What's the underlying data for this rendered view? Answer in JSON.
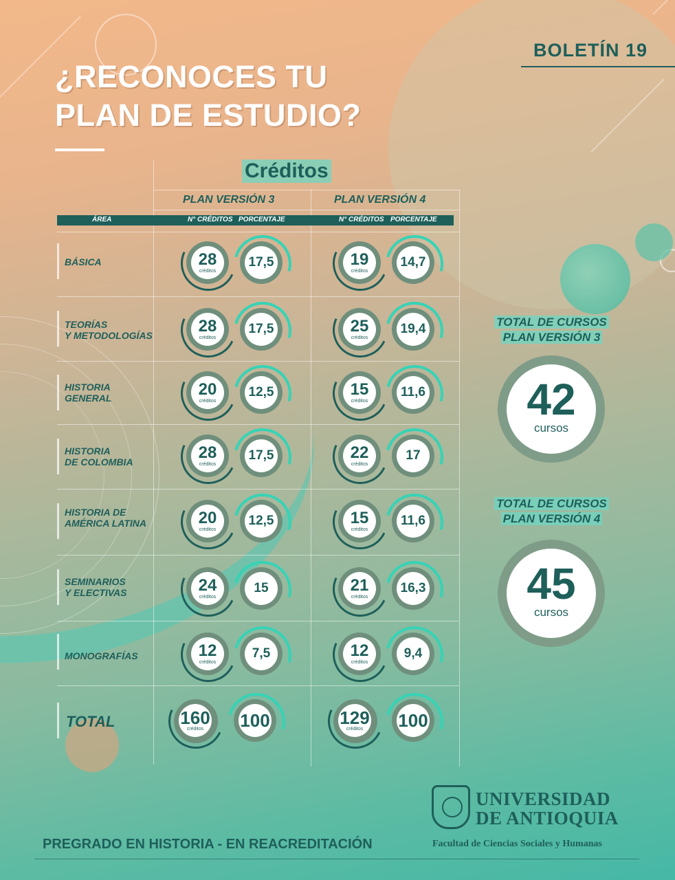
{
  "header": {
    "boletin": "BOLETÍN 19",
    "title_line1": "¿RECONOCES TU",
    "title_line2": "PLAN DE ESTUDIO?",
    "section": "Créditos"
  },
  "table": {
    "plan3_heading": "PLAN VERSIÓN 3",
    "plan4_heading": "PLAN VERSIÓN 4",
    "col_area": "ÁREA",
    "col_creditos": "N° CRÉDITOS",
    "col_porcentaje": "PORCENTAJE",
    "credit_unit": "créditos",
    "rows": [
      {
        "area1": "BÁSICA",
        "area2": "",
        "v3_cred": "28",
        "v3_pct": "17,5",
        "v4_cred": "19",
        "v4_pct": "14,7"
      },
      {
        "area1": "TEORÍAS",
        "area2": "Y METODOLOGÍAS",
        "v3_cred": "28",
        "v3_pct": "17,5",
        "v4_cred": "25",
        "v4_pct": "19,4"
      },
      {
        "area1": "HISTORIA",
        "area2": "GENERAL",
        "v3_cred": "20",
        "v3_pct": "12,5",
        "v4_cred": "15",
        "v4_pct": "11,6"
      },
      {
        "area1": "HISTORIA",
        "area2": "DE COLOMBIA",
        "v3_cred": "28",
        "v3_pct": "17,5",
        "v4_cred": "22",
        "v4_pct": "17"
      },
      {
        "area1": "HISTORIA DE",
        "area2": "AMÉRICA LATINA",
        "v3_cred": "20",
        "v3_pct": "12,5",
        "v4_cred": "15",
        "v4_pct": "11,6"
      },
      {
        "area1": "SEMINARIOS",
        "area2": "Y ELECTIVAS",
        "v3_cred": "24",
        "v3_pct": "15",
        "v4_cred": "21",
        "v4_pct": "16,3"
      },
      {
        "area1": "MONOGRAFÍAS",
        "area2": "",
        "v3_cred": "12",
        "v3_pct": "7,5",
        "v4_cred": "12",
        "v4_pct": "9,4"
      }
    ],
    "total": {
      "label": "TOTAL",
      "v3_cred": "160",
      "v3_pct": "100",
      "v4_cred": "129",
      "v4_pct": "100"
    }
  },
  "totals": {
    "v3_title1": "TOTAL DE CURSOS",
    "v3_title2": "PLAN VERSIÓN 3",
    "v3_value": "42",
    "v4_title1": "TOTAL DE CURSOS",
    "v4_title2": "PLAN VERSIÓN 4",
    "v4_value": "45",
    "unit": "cursos"
  },
  "footer": {
    "program": "PREGRADO EN HISTORIA - EN REACREDITACIÓN",
    "university_line1": "UNIVERSIDAD",
    "university_line2": "DE ANTIOQUIA",
    "faculty": "Facultad de Ciencias Sociales y Humanas"
  },
  "colors": {
    "dark_teal": "#1e5f5a",
    "accent_teal": "#36d3b6",
    "peach": "#f2b88a"
  }
}
